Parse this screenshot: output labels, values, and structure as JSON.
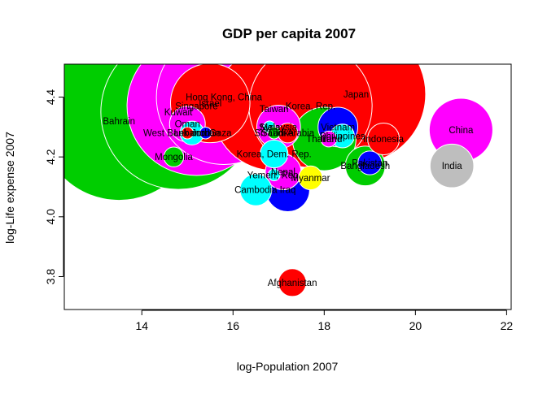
{
  "chart_data": {
    "type": "scatter",
    "title": "GDP per capita  2007",
    "xlabel": "log-Population  2007",
    "ylabel": "log-Life expense  2007",
    "xlim": [
      12.3,
      22.1
    ],
    "ylim": [
      3.69,
      4.51
    ],
    "xticks": [
      14,
      16,
      18,
      20,
      22
    ],
    "yticks": [
      3.8,
      4.0,
      4.2,
      4.4
    ],
    "xtick_labels": [
      "14",
      "16",
      "18",
      "20",
      "22"
    ],
    "ytick_labels": [
      "3.8",
      "4.0",
      "4.2",
      "4.4"
    ],
    "grid": false,
    "legend": "none",
    "colors": {
      "green": "#00cd00",
      "magenta": "#ff00ff",
      "red": "#ff0000",
      "cyan": "#00ffff",
      "blue": "#0000ff",
      "yellow": "#ffff00",
      "grey": "#bebebe"
    },
    "points": [
      {
        "label": "Bahrain",
        "x": 13.5,
        "y": 4.32,
        "size": 80,
        "color": "#00cd00"
      },
      {
        "label": "Kuwait",
        "x": 14.8,
        "y": 4.35,
        "size": 78,
        "color": "#00cd00"
      },
      {
        "label": "Mongolia",
        "x": 14.7,
        "y": 4.2,
        "size": 10,
        "color": "#00cd00"
      },
      {
        "label": "West Bank and Gaza",
        "x": 15.0,
        "y": 4.28,
        "size": 6,
        "color": "#ff0000"
      },
      {
        "label": "Singapore",
        "x": 15.2,
        "y": 4.37,
        "size": 70,
        "color": "#ff00ff"
      },
      {
        "label": "Hong Kong, China",
        "x": 15.8,
        "y": 4.4,
        "size": 68,
        "color": "#ff00ff"
      },
      {
        "label": "Israel",
        "x": 15.5,
        "y": 4.38,
        "size": 40,
        "color": "#ff0000"
      },
      {
        "label": "Oman",
        "x": 15.0,
        "y": 4.31,
        "size": 18,
        "color": "#ff00ff"
      },
      {
        "label": "Lebanon",
        "x": 15.1,
        "y": 4.28,
        "size": 12,
        "color": "#00ffff"
      },
      {
        "label": "Jordan",
        "x": 15.4,
        "y": 4.28,
        "size": 6,
        "color": "#0000ff"
      },
      {
        "label": "Taiwan",
        "x": 16.9,
        "y": 4.36,
        "size": 62,
        "color": "#ff0000"
      },
      {
        "label": "Korea, Rep.",
        "x": 17.7,
        "y": 4.37,
        "size": 62,
        "color": "#ff0000"
      },
      {
        "label": "Japan",
        "x": 18.7,
        "y": 4.41,
        "size": 70,
        "color": "#ff0000"
      },
      {
        "label": "Malaysia",
        "x": 17.0,
        "y": 4.3,
        "size": 22,
        "color": "#ff00ff"
      },
      {
        "label": "Syria",
        "x": 16.8,
        "y": 4.3,
        "size": 6,
        "color": "#00ffff"
      },
      {
        "label": "Saudi Arabia",
        "x": 17.2,
        "y": 4.28,
        "size": 10,
        "color": "#ff0000"
      },
      {
        "label": "Sri Lanka",
        "x": 16.9,
        "y": 4.28,
        "size": 6,
        "color": "#00cd00"
      },
      {
        "label": "Korea, Dem. Rep.",
        "x": 16.9,
        "y": 4.21,
        "size": 14,
        "color": "#00ffff"
      },
      {
        "label": "Yemen, Rep.",
        "x": 16.9,
        "y": 4.14,
        "size": 6,
        "color": "#00ffff"
      },
      {
        "label": "Nepal",
        "x": 17.1,
        "y": 4.15,
        "size": 18,
        "color": "#ff00ff"
      },
      {
        "label": "Cambodia",
        "x": 16.5,
        "y": 4.09,
        "size": 16,
        "color": "#00ffff"
      },
      {
        "label": "Iraq",
        "x": 17.2,
        "y": 4.09,
        "size": 22,
        "color": "#0000ff"
      },
      {
        "label": "Myanmar",
        "x": 17.7,
        "y": 4.13,
        "size": 12,
        "color": "#ffff00"
      },
      {
        "label": "Vietnam",
        "x": 18.3,
        "y": 4.3,
        "size": 20,
        "color": "#0000ff"
      },
      {
        "label": "Philippines",
        "x": 18.4,
        "y": 4.27,
        "size": 12,
        "color": "#00ffff"
      },
      {
        "label": "Thailand",
        "x": 18.0,
        "y": 4.26,
        "size": 32,
        "color": "#00cd00"
      },
      {
        "label": "Iran",
        "x": 18.1,
        "y": 4.26,
        "size": 8,
        "color": "#ff00ff"
      },
      {
        "label": "Indonesia",
        "x": 19.3,
        "y": 4.26,
        "size": 16,
        "color": "#ff0000"
      },
      {
        "label": "Pakistan",
        "x": 19.0,
        "y": 4.18,
        "size": 12,
        "color": "#0000ff"
      },
      {
        "label": "Bangladesh",
        "x": 18.9,
        "y": 4.17,
        "size": 20,
        "color": "#00cd00"
      },
      {
        "label": "Afghanistan",
        "x": 17.3,
        "y": 3.78,
        "size": 14,
        "color": "#ff0000"
      },
      {
        "label": "China",
        "x": 21.0,
        "y": 4.29,
        "size": 32,
        "color": "#ff00ff"
      },
      {
        "label": "India",
        "x": 20.8,
        "y": 4.17,
        "size": 22,
        "color": "#bebebe"
      }
    ]
  }
}
